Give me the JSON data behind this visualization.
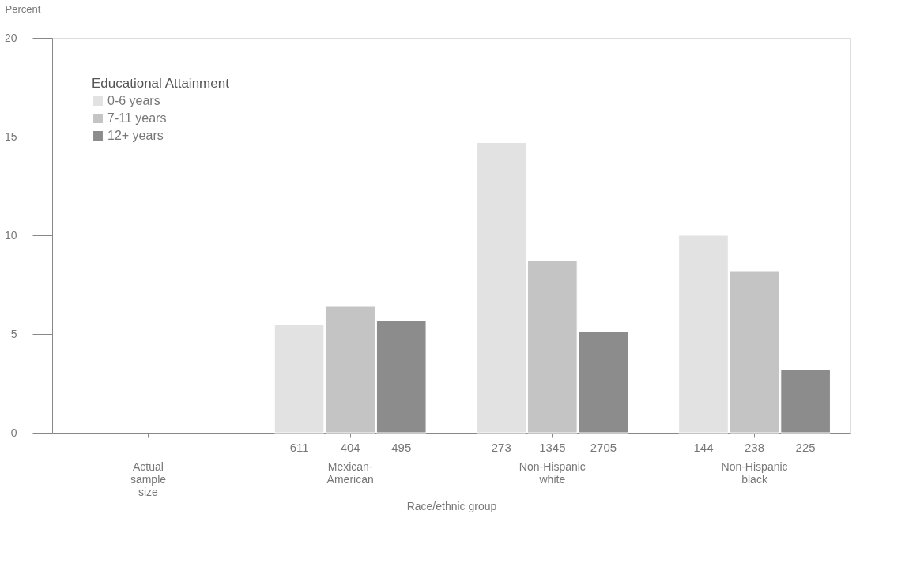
{
  "chart_data": {
    "type": "bar",
    "xlabel": "Race/ethnic group",
    "ylabel": "Percent",
    "legend_title": "Educational Attainment",
    "legend": "top left",
    "grid": false,
    "categories": [
      "Actual sample size",
      "Mexican-American",
      "Non-Hispanic white",
      "Non-Hispanic black"
    ],
    "series": [
      {
        "name": "0-6   years",
        "color": "#e2e2e2",
        "values": [
          null,
          5.5,
          14.7,
          10.0
        ]
      },
      {
        "name": "7-11  years",
        "color": "#c4c4c4",
        "values": [
          null,
          6.4,
          8.7,
          8.2
        ]
      },
      {
        "name": "12+   years",
        "color": "#8c8c8c",
        "values": [
          null,
          5.7,
          5.1,
          3.2
        ]
      }
    ],
    "ylim": [
      0,
      20
    ],
    "yticks": [
      0,
      5,
      10,
      15,
      20
    ],
    "annotations": [
      "611",
      "404",
      "495",
      "273",
      "1345",
      "2705",
      "144",
      "238",
      "225"
    ]
  }
}
